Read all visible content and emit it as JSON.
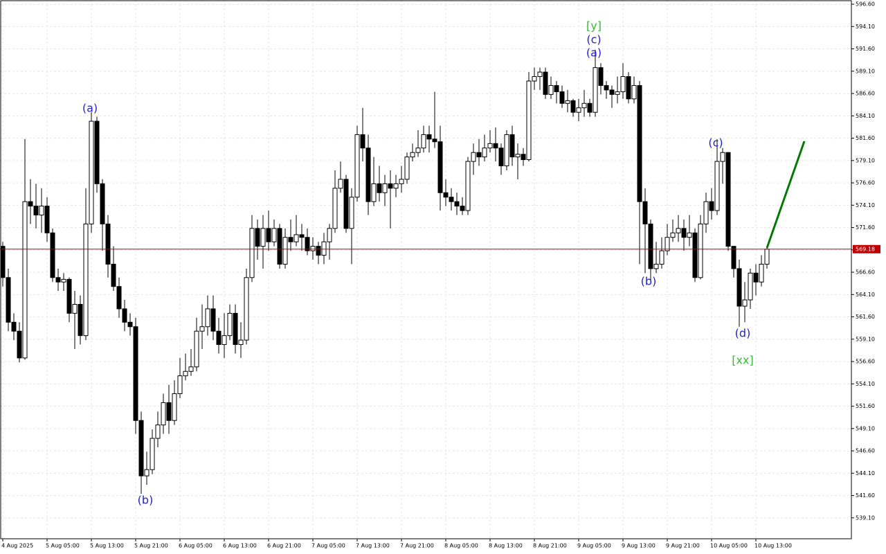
{
  "chart_data": {
    "type": "candlestick",
    "open": [
      569.5,
      566,
      561,
      560,
      557,
      574.5,
      574,
      573,
      574,
      571,
      566,
      565.5,
      565.8,
      562,
      563,
      559.5,
      572,
      583.5,
      576.5,
      572,
      567.5,
      565,
      562.5,
      561,
      560.5,
      550,
      543.8,
      544.5,
      548,
      549.5,
      552,
      550,
      553,
      555,
      555.5,
      556,
      560,
      560.5,
      562.5,
      560,
      558.5,
      559.5,
      562,
      558.5,
      559,
      566,
      571.5,
      569.5,
      571.5,
      570,
      571.5,
      567.5,
      570.5,
      570,
      570.8,
      570.5,
      569,
      569.5,
      568.5,
      570,
      571.5,
      576,
      577,
      571.5,
      575,
      582,
      580.5,
      574.5,
      576.5,
      575.5,
      576.5,
      576,
      576.5,
      577,
      579.5,
      580,
      580.5,
      582,
      581.5,
      581.2,
      575.5,
      575,
      574.5,
      574,
      573.5,
      579,
      580,
      579.5,
      580.5,
      581,
      580.5,
      578.5,
      582,
      579.5,
      579.8,
      579.2,
      588,
      588.5,
      589,
      586.5,
      587.5,
      586.8,
      585.5,
      585.8,
      584.5,
      585,
      585.5,
      584.5,
      589.5,
      587.5,
      587,
      586.5,
      586.8,
      588.5,
      586,
      587.5,
      574.5,
      572,
      567,
      567.5,
      569,
      570.5,
      571,
      571.5,
      570.5,
      571,
      566,
      572,
      574.5,
      573.5,
      579,
      580,
      569.5,
      567,
      562.8,
      563.5,
      566.5,
      565.5,
      567.5
    ],
    "high": [
      570,
      567,
      562,
      561,
      581.5,
      577,
      576.5,
      576,
      575,
      571.5,
      567,
      566.5,
      566,
      564.5,
      564,
      576,
      584.5,
      584,
      577,
      573,
      569.5,
      566,
      563.5,
      562,
      561.5,
      551,
      546.5,
      549,
      551,
      553,
      554,
      554.5,
      557,
      557.5,
      558,
      561.5,
      563,
      564,
      564,
      561.5,
      562,
      563,
      563,
      561,
      567,
      573,
      572.5,
      573,
      573.5,
      572.5,
      572,
      571.5,
      572.5,
      573,
      572,
      571.5,
      570.5,
      570,
      571,
      572,
      578,
      579,
      577.5,
      576,
      583,
      585,
      582,
      579.5,
      578.5,
      577.5,
      578,
      577.5,
      578.5,
      580,
      581,
      582.5,
      583,
      583,
      586.8,
      583,
      577,
      576,
      575.5,
      575,
      579.5,
      581,
      581.5,
      582,
      582.5,
      582.8,
      581,
      582.5,
      583,
      581,
      580.5,
      589,
      589.5,
      589.5,
      589.5,
      588.5,
      588,
      587.5,
      587,
      586,
      586,
      587,
      586,
      591.5,
      590,
      588,
      587.5,
      588.5,
      590,
      589,
      588.5,
      588,
      576,
      572.5,
      570,
      570.5,
      572,
      572.5,
      573,
      572.5,
      573,
      571.5,
      573,
      575.5,
      576,
      581.5,
      580.5,
      580,
      569.5,
      568,
      565.5,
      567,
      567.5,
      568.5,
      569.5
    ],
    "low": [
      565,
      560,
      559,
      556.5,
      556.8,
      572,
      571.5,
      571,
      570,
      565.5,
      564.5,
      564.5,
      561,
      558,
      558.5,
      559,
      571,
      575.5,
      569,
      566,
      564.5,
      561.5,
      560,
      559.5,
      548.5,
      541.8,
      542.8,
      544,
      547,
      548.5,
      548.5,
      549.5,
      552.5,
      554.5,
      555,
      555.5,
      558,
      559.5,
      559,
      557.5,
      557,
      559,
      557.5,
      557,
      558.5,
      565.5,
      568,
      567,
      569,
      569.5,
      567,
      567,
      569,
      569.5,
      569,
      568.5,
      568,
      567.5,
      567.5,
      568,
      571,
      575.5,
      571,
      567.5,
      574.5,
      579,
      573,
      574,
      574.5,
      574,
      571.5,
      575,
      575.5,
      576.5,
      579,
      579.5,
      580,
      580,
      580.5,
      573.5,
      574,
      573.5,
      573,
      573,
      573,
      577.5,
      578.5,
      579,
      580,
      579,
      577.5,
      578,
      578.5,
      577,
      578.5,
      579,
      587,
      587,
      586,
      586,
      585.5,
      585,
      584.5,
      584,
      583.5,
      584,
      584,
      584,
      586.5,
      586,
      585,
      585.5,
      586,
      585.5,
      585.5,
      567.5,
      566.5,
      565.5,
      566.5,
      567,
      568.5,
      570,
      570,
      569,
      569.5,
      565.5,
      565.8,
      571,
      572.5,
      573,
      576.5,
      569,
      566,
      560.5,
      561,
      562.5,
      564,
      565,
      567
    ],
    "close": [
      566,
      561,
      560,
      557,
      574.5,
      574,
      573,
      574,
      571,
      566,
      565.5,
      565.8,
      562,
      563,
      559.5,
      572,
      583.5,
      576.5,
      572,
      567.5,
      565,
      562.5,
      561,
      560.5,
      550,
      543.8,
      544.5,
      548,
      549.5,
      552,
      550,
      553,
      555,
      555.5,
      556,
      560,
      560.5,
      562.5,
      560,
      558.5,
      559.5,
      562,
      558.5,
      559,
      566,
      571.5,
      569.5,
      571.5,
      570,
      571.5,
      567.5,
      570.5,
      570,
      570.8,
      570.5,
      569,
      569.5,
      568.5,
      570,
      571.5,
      576,
      577,
      571.5,
      575,
      582,
      580.5,
      574.5,
      576.5,
      575.5,
      576.5,
      576,
      576.5,
      577,
      579.5,
      580,
      580.5,
      582,
      581.5,
      581.2,
      575.5,
      575,
      574.5,
      574,
      573.5,
      579,
      580,
      579.5,
      580.5,
      581,
      580.5,
      578.5,
      582,
      579.5,
      579.8,
      579.2,
      588,
      588.5,
      589,
      586.5,
      587.5,
      586.8,
      585.5,
      585.8,
      584.5,
      585,
      585.5,
      584.5,
      589.5,
      587.5,
      587,
      586.5,
      586.8,
      588.5,
      586,
      587.5,
      574.5,
      572,
      567,
      567.5,
      569,
      570.5,
      571,
      571.5,
      570.5,
      571,
      566,
      572,
      574.5,
      573.5,
      579,
      580,
      569.5,
      567,
      562.8,
      563.5,
      566.5,
      565.5,
      567.5,
      569.18
    ],
    "current_price": 569.18,
    "current_price_color": "#c00000",
    "up_color": "#ffffff",
    "down_color": "#000000",
    "ylim": [
      536.76,
      597.07
    ],
    "yticks": [
      {
        "value": 596.6,
        "label": "596.60"
      },
      {
        "value": 594.1,
        "label": "594.10"
      },
      {
        "value": 591.6,
        "label": "591.60"
      },
      {
        "value": 589.1,
        "label": "589.10"
      },
      {
        "value": 586.6,
        "label": "586.60"
      },
      {
        "value": 584.1,
        "label": "584.10"
      },
      {
        "value": 581.6,
        "label": "581.60"
      },
      {
        "value": 579.1,
        "label": "579.10"
      },
      {
        "value": 576.6,
        "label": "576.60"
      },
      {
        "value": 574.1,
        "label": "574.10"
      },
      {
        "value": 571.6,
        "label": "571.60"
      },
      {
        "value": 569.1,
        "label": "569.10"
      },
      {
        "value": 566.6,
        "label": "566.60"
      },
      {
        "value": 564.1,
        "label": "564.10"
      },
      {
        "value": 561.6,
        "label": "561.60"
      },
      {
        "value": 559.1,
        "label": "559.10"
      },
      {
        "value": 556.6,
        "label": "556.60"
      },
      {
        "value": 554.1,
        "label": "554.10"
      },
      {
        "value": 551.6,
        "label": "551.60"
      },
      {
        "value": 549.1,
        "label": "549.10"
      },
      {
        "value": 546.6,
        "label": "546.60"
      },
      {
        "value": 544.1,
        "label": "544.10"
      },
      {
        "value": 541.6,
        "label": "541.60"
      },
      {
        "value": 539.1,
        "label": "539.10"
      }
    ],
    "x_labels": [
      "4 Aug 2025",
      "5 Aug 05:00",
      "5 Aug 13:00",
      "5 Aug 21:00",
      "6 Aug 05:00",
      "6 Aug 13:00",
      "6 Aug 21:00",
      "7 Aug 05:00",
      "7 Aug 13:00",
      "7 Aug 21:00",
      "8 Aug 05:00",
      "8 Aug 13:00",
      "8 Aug 21:00",
      "9 Aug 05:00",
      "9 Aug 13:00",
      "9 Aug 21:00",
      "10 Aug 05:00",
      "10 Aug 13:00"
    ],
    "grid": true,
    "annotations": [
      {
        "text": "[y]",
        "color": "#33bb33"
      },
      {
        "text": "(c)",
        "color": "#2222cc"
      },
      {
        "text": "(a)",
        "color": "#2222cc"
      },
      {
        "text": "(a)",
        "color": "#2222cc"
      },
      {
        "text": "(b)",
        "color": "#2222cc"
      },
      {
        "text": "(b)",
        "color": "#2222cc"
      },
      {
        "text": "(c)",
        "color": "#2222cc"
      },
      {
        "text": "(d)",
        "color": "#2222cc"
      },
      {
        "text": "[xx]",
        "color": "#33bb33"
      }
    ]
  }
}
